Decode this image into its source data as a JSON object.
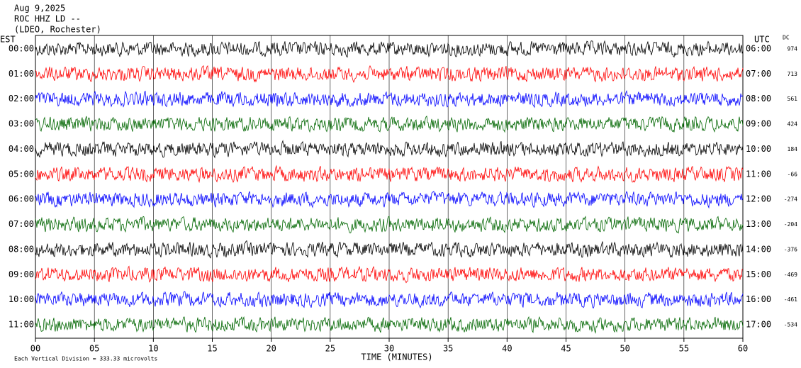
{
  "chart_data": {
    "type": "helicorder",
    "title_lines": [
      "Aug 9,2025",
      "ROC HHZ LD --",
      "(LDEO, Rochester)"
    ],
    "left_axis_title": "EST",
    "right_axis_title": "UTC",
    "dc_title": "DC",
    "x_label": "TIME (MINUTES)",
    "footer": "Each Vertical Division =  333.33 microvolts",
    "xlim": [
      0,
      60
    ],
    "xticks": [
      {
        "value": 0,
        "label": "00"
      },
      {
        "value": 5,
        "label": "05"
      },
      10,
      15,
      20,
      25,
      30,
      35,
      40,
      45,
      50,
      55,
      60
    ],
    "grid": true,
    "series": [
      {
        "name": "00:00",
        "utc": "06:00",
        "dc": 974,
        "color": "#000000"
      },
      {
        "name": "01:00",
        "utc": "07:00",
        "dc": 713,
        "color": "#ff0000"
      },
      {
        "name": "02:00",
        "utc": "08:00",
        "dc": 561,
        "color": "#0000ff"
      },
      {
        "name": "03:00",
        "utc": "09:00",
        "dc": 424,
        "color": "#006600"
      },
      {
        "name": "04:00",
        "utc": "10:00",
        "dc": 184,
        "color": "#000000"
      },
      {
        "name": "05:00",
        "utc": "11:00",
        "dc": -66,
        "color": "#ff0000"
      },
      {
        "name": "06:00",
        "utc": "12:00",
        "dc": -274,
        "color": "#0000ff"
      },
      {
        "name": "07:00",
        "utc": "13:00",
        "dc": -204,
        "color": "#006600"
      },
      {
        "name": "08:00",
        "utc": "14:00",
        "dc": -376,
        "color": "#000000"
      },
      {
        "name": "09:00",
        "utc": "15:00",
        "dc": -469,
        "color": "#ff0000"
      },
      {
        "name": "10:00",
        "utc": "16:00",
        "dc": -461,
        "color": "#0000ff"
      },
      {
        "name": "11:00",
        "utc": "17:00",
        "dc": -534,
        "color": "#006600"
      }
    ]
  }
}
